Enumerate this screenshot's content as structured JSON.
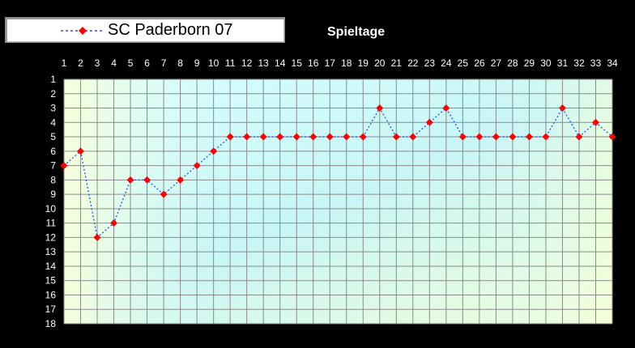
{
  "legend": {
    "label": "SC Paderborn 07"
  },
  "chart_title": "Spieltage",
  "chart_data": {
    "type": "line",
    "title": "Spieltage",
    "xlabel": "",
    "ylabel": "",
    "x": [
      1,
      2,
      3,
      4,
      5,
      6,
      7,
      8,
      9,
      10,
      11,
      12,
      13,
      14,
      15,
      16,
      17,
      18,
      19,
      20,
      21,
      22,
      23,
      24,
      25,
      26,
      27,
      28,
      29,
      30,
      31,
      32,
      33,
      34
    ],
    "xlim": [
      1,
      34
    ],
    "ylim": [
      1,
      18
    ],
    "y_axis_inverted": true,
    "x_axis_position": "top",
    "grid": true,
    "legend_position": "top-left",
    "series": [
      {
        "name": "SC Paderborn 07",
        "line_color": "#1f4fff",
        "line_style": "dotted",
        "marker": "diamond",
        "marker_color": "#ff0000",
        "values": [
          7,
          6,
          12,
          11,
          8,
          8,
          9,
          8,
          7,
          6,
          5,
          5,
          5,
          5,
          5,
          5,
          5,
          5,
          5,
          3,
          5,
          5,
          4,
          3,
          5,
          5,
          5,
          5,
          5,
          5,
          3,
          5,
          4,
          5
        ]
      }
    ]
  }
}
